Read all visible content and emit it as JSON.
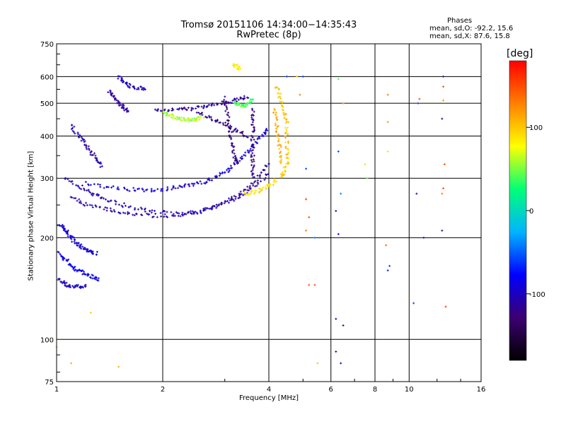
{
  "chart_data": {
    "type": "scatter",
    "title": "Tromsø 20151106 14:34:00−14:35:43",
    "subtitle": "RwPretec (8p)",
    "stats": {
      "heading": "Phases",
      "line_o": "mean, sd,O: -92.2, 15.6",
      "line_x": "mean, sd,X: 87.6, 15.8"
    },
    "xlabel": "Frequency [MHz]",
    "ylabel": "Stationary phase Virtual Height [km]",
    "x_scale": "log",
    "y_scale": "log",
    "xlim": [
      1,
      16
    ],
    "ylim": [
      75,
      750
    ],
    "x_ticks": [
      1,
      2,
      4,
      6,
      8,
      10,
      16
    ],
    "x_tick_labels": [
      "1",
      "2",
      "4",
      "6",
      "8",
      "10",
      "16"
    ],
    "y_ticks": [
      75,
      100,
      200,
      300,
      400,
      500,
      600,
      750
    ],
    "y_tick_labels": [
      "75",
      "100",
      "200",
      "300",
      "400",
      "500",
      "600",
      "750"
    ],
    "grid": true,
    "colorbar": {
      "label": "[deg]",
      "range": [
        -180,
        180
      ],
      "ticks": [
        100,
        0,
        -100
      ],
      "tick_labels": [
        "100",
        "0",
        "-100"
      ],
      "colors": [
        "#000000",
        "#3c0070",
        "#0000ff",
        "#00b4ff",
        "#00ff78",
        "#ffff00",
        "#ff8000",
        "#ff0000"
      ]
    },
    "traces": [
      {
        "name": "",
        "phase": -95,
        "points": [
          [
            1.02,
            220
          ],
          [
            1.05,
            212
          ],
          [
            1.08,
            205
          ],
          [
            1.12,
            196
          ],
          [
            1.16,
            190
          ],
          [
            1.2,
            186
          ],
          [
            1.25,
            182
          ],
          [
            1.3,
            179
          ]
        ]
      },
      {
        "name": "",
        "phase": -85,
        "points": [
          [
            1.02,
            180
          ],
          [
            1.06,
            172
          ],
          [
            1.1,
            165
          ],
          [
            1.15,
            160
          ],
          [
            1.2,
            156
          ],
          [
            1.26,
            153
          ],
          [
            1.32,
            150
          ]
        ]
      },
      {
        "name": "",
        "phase": -100,
        "points": [
          [
            1.02,
            150
          ],
          [
            1.06,
            146
          ],
          [
            1.1,
            144
          ],
          [
            1.16,
            143
          ],
          [
            1.22,
            144
          ]
        ]
      },
      {
        "name": "",
        "phase": -105,
        "points": [
          [
            1.05,
            300
          ],
          [
            1.15,
            285
          ],
          [
            1.25,
            272
          ],
          [
            1.35,
            262
          ],
          [
            1.5,
            252
          ],
          [
            1.7,
            244
          ],
          [
            1.9,
            238
          ],
          [
            2.2,
            236
          ],
          [
            2.5,
            239
          ],
          [
            2.8,
            246
          ],
          [
            3.1,
            256
          ],
          [
            3.4,
            270
          ],
          [
            3.7,
            288
          ],
          [
            4.0,
            312
          ]
        ]
      },
      {
        "name": "",
        "phase": -110,
        "points": [
          [
            1.1,
            262
          ],
          [
            1.2,
            252
          ],
          [
            1.35,
            244
          ],
          [
            1.5,
            238
          ],
          [
            1.7,
            234
          ],
          [
            2.0,
            232
          ],
          [
            2.3,
            234
          ],
          [
            2.6,
            240
          ],
          [
            2.9,
            250
          ],
          [
            3.2,
            264
          ],
          [
            3.5,
            284
          ],
          [
            3.8,
            310
          ],
          [
            4.0,
            335
          ]
        ]
      },
      {
        "name": "",
        "phase": -95,
        "points": [
          [
            1.2,
            290
          ],
          [
            1.4,
            282
          ],
          [
            1.6,
            278
          ],
          [
            1.8,
            276
          ],
          [
            2.0,
            278
          ],
          [
            2.2,
            282
          ],
          [
            2.4,
            286
          ],
          [
            2.6,
            292
          ],
          [
            2.8,
            300
          ],
          [
            3.0,
            312
          ],
          [
            3.2,
            330
          ],
          [
            3.4,
            350
          ],
          [
            3.6,
            375
          ],
          [
            3.8,
            400
          ],
          [
            3.95,
            420
          ]
        ]
      },
      {
        "name": "",
        "phase": -110,
        "points": [
          [
            1.1,
            430
          ],
          [
            1.15,
            400
          ],
          [
            1.2,
            380
          ],
          [
            1.25,
            360
          ],
          [
            1.3,
            340
          ],
          [
            1.35,
            325
          ]
        ]
      },
      {
        "name": "",
        "phase": -100,
        "points": [
          [
            1.5,
            600
          ],
          [
            1.55,
            580
          ],
          [
            1.6,
            565
          ],
          [
            1.7,
            555
          ],
          [
            1.8,
            550
          ]
        ]
      },
      {
        "name": "",
        "phase": -110,
        "points": [
          [
            1.4,
            545
          ],
          [
            1.45,
            520
          ],
          [
            1.5,
            500
          ],
          [
            1.55,
            485
          ],
          [
            1.6,
            470
          ]
        ]
      },
      {
        "name": "",
        "phase": -115,
        "points": [
          [
            1.9,
            480
          ],
          [
            2.1,
            478
          ],
          [
            2.3,
            480
          ],
          [
            2.5,
            484
          ],
          [
            2.7,
            490
          ],
          [
            2.9,
            498
          ],
          [
            3.1,
            505
          ],
          [
            3.3,
            515
          ],
          [
            3.5,
            525
          ]
        ]
      },
      {
        "name": "",
        "phase": -120,
        "points": [
          [
            2.5,
            470
          ],
          [
            2.7,
            455
          ],
          [
            2.9,
            440
          ],
          [
            3.1,
            425
          ],
          [
            3.3,
            410
          ],
          [
            3.5,
            395
          ]
        ]
      },
      {
        "name": "",
        "phase": -125,
        "points": [
          [
            3.0,
            520
          ],
          [
            3.05,
            470
          ],
          [
            3.1,
            420
          ],
          [
            3.15,
            380
          ],
          [
            3.2,
            350
          ],
          [
            3.25,
            330
          ]
        ]
      },
      {
        "name": "",
        "phase": -120,
        "points": [
          [
            3.6,
            480
          ],
          [
            3.6,
            440
          ],
          [
            3.6,
            400
          ],
          [
            3.6,
            360
          ],
          [
            3.6,
            330
          ],
          [
            3.6,
            300
          ]
        ]
      },
      {
        "name": "",
        "phase": 60,
        "points": [
          [
            2.0,
            470
          ],
          [
            2.1,
            460
          ],
          [
            2.2,
            452
          ],
          [
            2.3,
            447
          ],
          [
            2.4,
            446
          ],
          [
            2.5,
            450
          ],
          [
            2.6,
            456
          ]
        ]
      },
      {
        "name": "",
        "phase": 40,
        "points": [
          [
            3.2,
            500
          ],
          [
            3.3,
            495
          ],
          [
            3.4,
            490
          ],
          [
            3.5,
            500
          ],
          [
            3.6,
            515
          ]
        ]
      },
      {
        "name": "",
        "phase": 80,
        "points": [
          [
            3.2,
            650
          ],
          [
            3.25,
            640
          ],
          [
            3.3,
            630
          ]
        ]
      },
      {
        "name": "",
        "phase": 100,
        "points": [
          [
            4.2,
            560
          ],
          [
            4.3,
            520
          ],
          [
            4.4,
            480
          ],
          [
            4.5,
            440
          ],
          [
            4.5,
            400
          ],
          [
            4.5,
            360
          ],
          [
            4.5,
            330
          ],
          [
            4.4,
            310
          ],
          [
            4.3,
            300
          ]
        ]
      },
      {
        "name": "",
        "phase": 90,
        "points": [
          [
            3.4,
            270
          ],
          [
            3.6,
            272
          ],
          [
            3.8,
            278
          ],
          [
            4.0,
            286
          ],
          [
            4.2,
            296
          ]
        ]
      },
      {
        "name": "",
        "phase": 110,
        "points": [
          [
            4.15,
            480
          ],
          [
            4.2,
            440
          ],
          [
            4.25,
            400
          ],
          [
            4.3,
            360
          ],
          [
            4.35,
            330
          ]
        ]
      }
    ],
    "scattered_points": [
      {
        "x": 1.0,
        "y": 95,
        "phase": 110
      },
      {
        "x": 1.1,
        "y": 85,
        "phase": 110
      },
      {
        "x": 1.25,
        "y": 120,
        "phase": 100
      },
      {
        "x": 1.5,
        "y": 83,
        "phase": 110
      },
      {
        "x": 5.1,
        "y": 320,
        "phase": -60
      },
      {
        "x": 5.1,
        "y": 260,
        "phase": 160
      },
      {
        "x": 5.2,
        "y": 230,
        "phase": 150
      },
      {
        "x": 5.1,
        "y": 210,
        "phase": 130
      },
      {
        "x": 5.2,
        "y": 145,
        "phase": 150
      },
      {
        "x": 5.4,
        "y": 145,
        "phase": 150
      },
      {
        "x": 5.5,
        "y": 85,
        "phase": 100
      },
      {
        "x": 5.4,
        "y": 200,
        "phase": -40
      },
      {
        "x": 6.3,
        "y": 360,
        "phase": -60
      },
      {
        "x": 6.2,
        "y": 240,
        "phase": -110
      },
      {
        "x": 6.4,
        "y": 270,
        "phase": -40
      },
      {
        "x": 6.3,
        "y": 205,
        "phase": -80
      },
      {
        "x": 6.2,
        "y": 115,
        "phase": -110
      },
      {
        "x": 6.5,
        "y": 110,
        "phase": -110
      },
      {
        "x": 6.2,
        "y": 92,
        "phase": -110
      },
      {
        "x": 6.4,
        "y": 85,
        "phase": -110
      },
      {
        "x": 6.3,
        "y": 590,
        "phase": 40
      },
      {
        "x": 6.5,
        "y": 500,
        "phase": 120
      },
      {
        "x": 7.5,
        "y": 330,
        "phase": 60
      },
      {
        "x": 7.6,
        "y": 300,
        "phase": 40
      },
      {
        "x": 8.7,
        "y": 530,
        "phase": 130
      },
      {
        "x": 8.7,
        "y": 440,
        "phase": 120
      },
      {
        "x": 8.7,
        "y": 360,
        "phase": 90
      },
      {
        "x": 8.6,
        "y": 190,
        "phase": 140
      },
      {
        "x": 8.8,
        "y": 165,
        "phase": -60
      },
      {
        "x": 8.7,
        "y": 160,
        "phase": -70
      },
      {
        "x": 10.7,
        "y": 515,
        "phase": 150
      },
      {
        "x": 10.6,
        "y": 500,
        "phase": -60
      },
      {
        "x": 10.5,
        "y": 270,
        "phase": -110
      },
      {
        "x": 11.0,
        "y": 200,
        "phase": -90
      },
      {
        "x": 10.3,
        "y": 128,
        "phase": -60
      },
      {
        "x": 12.5,
        "y": 600,
        "phase": -110
      },
      {
        "x": 12.5,
        "y": 560,
        "phase": 150
      },
      {
        "x": 12.5,
        "y": 510,
        "phase": 120
      },
      {
        "x": 12.4,
        "y": 450,
        "phase": -110
      },
      {
        "x": 12.6,
        "y": 330,
        "phase": 150
      },
      {
        "x": 12.5,
        "y": 280,
        "phase": 150
      },
      {
        "x": 12.4,
        "y": 270,
        "phase": 130
      },
      {
        "x": 12.4,
        "y": 210,
        "phase": -110
      },
      {
        "x": 12.7,
        "y": 125,
        "phase": 160
      },
      {
        "x": 4.5,
        "y": 600,
        "phase": -60
      },
      {
        "x": 4.8,
        "y": 600,
        "phase": 100
      },
      {
        "x": 4.9,
        "y": 530,
        "phase": 130
      },
      {
        "x": 5.0,
        "y": 600,
        "phase": -60
      }
    ]
  }
}
